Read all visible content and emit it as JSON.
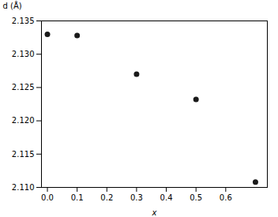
{
  "chart_data": {
    "type": "scatter",
    "x": [
      0.0,
      0.1,
      0.3,
      0.5,
      0.7
    ],
    "values": [
      2.133,
      2.1328,
      2.127,
      2.1232,
      2.1108
    ],
    "color": "#1a1a1a",
    "marker": "circle",
    "xlabel": "x",
    "ylabel": "d (Å)",
    "xlim": [
      -0.02,
      0.74
    ],
    "ylim": [
      2.11,
      2.135
    ],
    "xticks": [
      {
        "value": 0.0,
        "label": "0.0"
      },
      0.1,
      0.2,
      0.3,
      0.4,
      0.5,
      0.6
    ],
    "yticks": [
      {
        "value": 2.11,
        "label": "2.110"
      },
      2.115,
      {
        "value": 2.12,
        "label": "2.120"
      },
      2.125,
      {
        "value": 2.13,
        "label": "2.130"
      },
      2.135
    ],
    "grid": false
  }
}
